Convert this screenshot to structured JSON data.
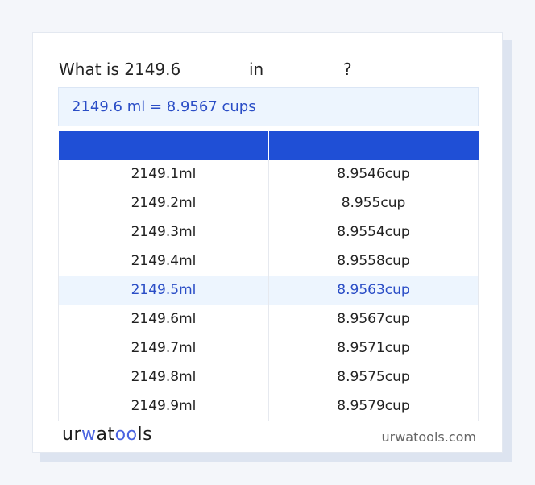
{
  "title": {
    "prefix": "What is 2149.6",
    "middle": "in",
    "suffix": "?"
  },
  "result": "2149.6 ml = 8.9567 cups",
  "table": {
    "headers": [
      "",
      ""
    ],
    "rows": [
      {
        "from": "2149.1ml",
        "to": "8.9546cup"
      },
      {
        "from": "2149.2ml",
        "to": "8.955cup"
      },
      {
        "from": "2149.3ml",
        "to": "8.9554cup"
      },
      {
        "from": "2149.4ml",
        "to": "8.9558cup"
      },
      {
        "from": "2149.5ml",
        "to": "8.9563cup",
        "highlighted": true
      },
      {
        "from": "2149.6ml",
        "to": "8.9567cup"
      },
      {
        "from": "2149.7ml",
        "to": "8.9571cup"
      },
      {
        "from": "2149.8ml",
        "to": "8.9575cup"
      },
      {
        "from": "2149.9ml",
        "to": "8.9579cup"
      }
    ]
  },
  "footer": {
    "logo": "urwatools",
    "site": "urwatools.com"
  },
  "colors": {
    "accent": "#1f4fd6",
    "highlight_bg": "#edf5fe",
    "highlight_text": "#2a4dc6"
  }
}
